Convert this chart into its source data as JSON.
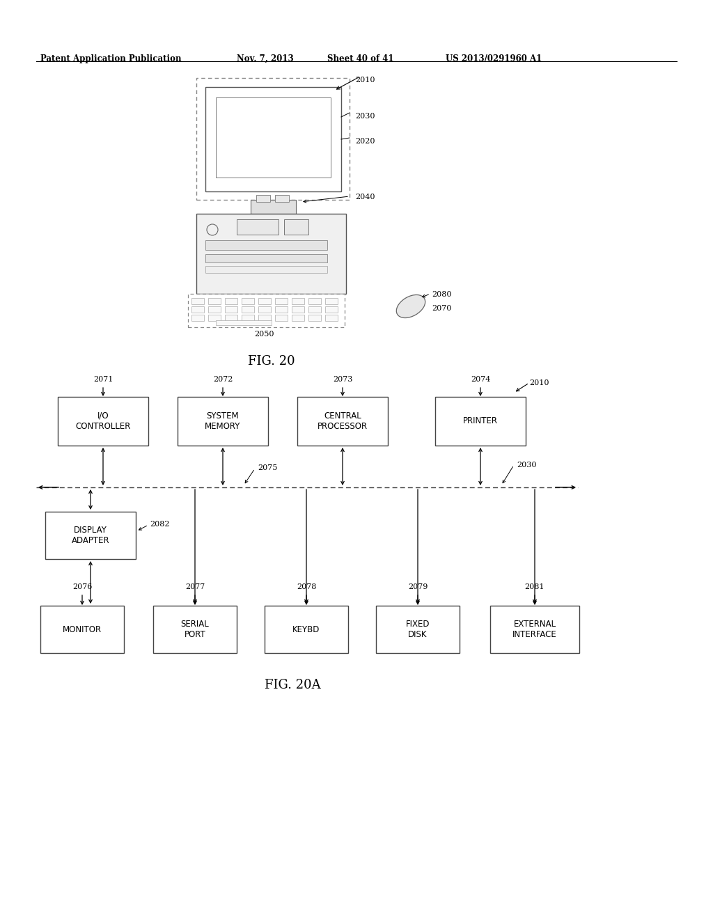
{
  "bg_color": "#ffffff",
  "header_text": "Patent Application Publication",
  "header_date": "Nov. 7, 2013",
  "header_sheet": "Sheet 40 of 41",
  "header_patent": "US 2013/0291960 A1",
  "fig20_label": "FIG. 20",
  "fig20a_label": "FIG. 20A"
}
